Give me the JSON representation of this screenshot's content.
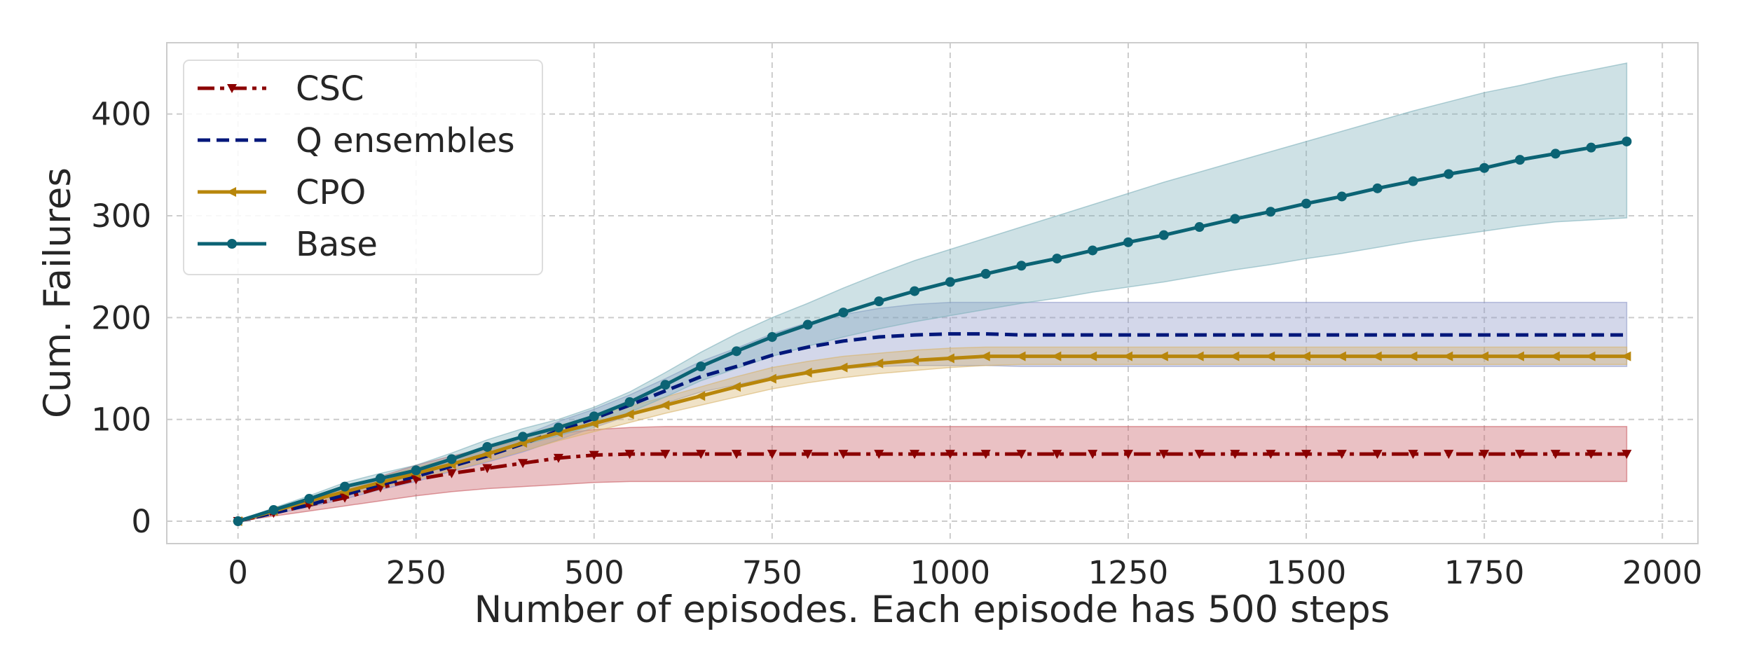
{
  "chart_data": {
    "type": "line",
    "title": "",
    "xlabel": "Number of episodes. Each episode has 500 steps",
    "ylabel": "Cum. Failures",
    "xlim": [
      -100,
      2050
    ],
    "ylim": [
      -22,
      470
    ],
    "xticks": [
      0,
      250,
      500,
      750,
      1000,
      1250,
      1500,
      1750,
      2000
    ],
    "yticks": [
      0,
      100,
      200,
      300,
      400
    ],
    "grid": true,
    "legend_position": "top-left",
    "x": [
      0,
      50,
      100,
      150,
      200,
      250,
      300,
      350,
      400,
      450,
      500,
      550,
      600,
      650,
      700,
      750,
      800,
      850,
      900,
      950,
      1000,
      1050,
      1100,
      1150,
      1200,
      1250,
      1300,
      1350,
      1400,
      1450,
      1500,
      1550,
      1600,
      1650,
      1700,
      1750,
      1800,
      1850,
      1900,
      1950
    ],
    "series": [
      {
        "name": "CSC",
        "color": "#8b0000",
        "band_color": "#c95c63",
        "line_style": "dashdot",
        "marker": "triangle-down",
        "values": [
          0,
          8,
          16,
          23,
          33,
          41,
          47,
          52,
          57,
          62,
          65,
          66,
          66,
          66,
          66,
          66,
          66,
          66,
          66,
          66,
          66,
          66,
          66,
          66,
          66,
          66,
          66,
          66,
          66,
          66,
          66,
          66,
          66,
          66,
          66,
          66,
          66,
          66,
          66,
          66
        ],
        "lower": [
          0,
          5,
          10,
          15,
          20,
          25,
          29,
          32,
          34,
          36,
          38,
          39,
          39,
          39,
          39,
          39,
          39,
          39,
          39,
          39,
          39,
          39,
          39,
          39,
          39,
          39,
          39,
          39,
          39,
          39,
          39,
          39,
          39,
          39,
          39,
          39,
          39,
          39,
          39,
          39
        ],
        "upper": [
          0,
          11,
          22,
          32,
          44,
          55,
          64,
          72,
          80,
          86,
          90,
          92,
          93,
          93,
          93,
          93,
          93,
          93,
          93,
          93,
          93,
          93,
          93,
          93,
          93,
          93,
          93,
          93,
          93,
          93,
          93,
          93,
          93,
          93,
          93,
          93,
          93,
          93,
          93,
          93
        ]
      },
      {
        "name": "Q ensembles",
        "color": "#00177a",
        "band_color": "#8c96c8",
        "line_style": "dashed",
        "marker": "none",
        "values": [
          0,
          8,
          16,
          26,
          36,
          44,
          54,
          64,
          76,
          89,
          101,
          114,
          128,
          142,
          152,
          163,
          171,
          177,
          181,
          183,
          184,
          184,
          183,
          183,
          183,
          183,
          183,
          183,
          183,
          183,
          183,
          183,
          183,
          183,
          183,
          183,
          183,
          183,
          183,
          183
        ],
        "lower": [
          0,
          7,
          14,
          22,
          31,
          39,
          49,
          58,
          68,
          80,
          92,
          104,
          116,
          127,
          134,
          142,
          147,
          150,
          152,
          153,
          153,
          153,
          152,
          152,
          152,
          152,
          152,
          152,
          152,
          152,
          152,
          152,
          152,
          152,
          152,
          152,
          152,
          152,
          152,
          152
        ],
        "upper": [
          0,
          10,
          19,
          30,
          41,
          50,
          60,
          71,
          84,
          98,
          110,
          124,
          140,
          157,
          170,
          184,
          195,
          203,
          209,
          213,
          215,
          215,
          215,
          215,
          215,
          215,
          215,
          215,
          215,
          215,
          215,
          215,
          215,
          215,
          215,
          215,
          215,
          215,
          215,
          215
        ]
      },
      {
        "name": "CPO",
        "color": "#b8860b",
        "band_color": "#d8b46a",
        "line_style": "solid",
        "marker": "triangle-left",
        "values": [
          0,
          10,
          20,
          29,
          38,
          47,
          56,
          66,
          77,
          87,
          96,
          105,
          114,
          123,
          132,
          140,
          146,
          151,
          155,
          158,
          160,
          162,
          162,
          162,
          162,
          162,
          162,
          162,
          162,
          162,
          162,
          162,
          162,
          162,
          162,
          162,
          162,
          162,
          162,
          162
        ],
        "lower": [
          0,
          8,
          17,
          25,
          33,
          41,
          50,
          59,
          69,
          79,
          88,
          97,
          106,
          114,
          122,
          130,
          136,
          141,
          145,
          148,
          151,
          153,
          154,
          154,
          154,
          154,
          154,
          154,
          154,
          154,
          154,
          154,
          154,
          154,
          154,
          154,
          154,
          154,
          154,
          154
        ],
        "upper": [
          0,
          12,
          23,
          33,
          43,
          53,
          62,
          72,
          84,
          94,
          103,
          113,
          122,
          132,
          142,
          151,
          157,
          162,
          165,
          168,
          170,
          171,
          171,
          171,
          171,
          171,
          171,
          171,
          171,
          171,
          171,
          171,
          171,
          171,
          171,
          171,
          171,
          171,
          171,
          171
        ]
      },
      {
        "name": "Base",
        "color": "#0b6374",
        "band_color": "#7fb0ba",
        "line_style": "solid",
        "marker": "circle",
        "values": [
          0,
          11,
          22,
          34,
          42,
          50,
          61,
          73,
          83,
          92,
          103,
          117,
          134,
          152,
          167,
          181,
          193,
          205,
          216,
          226,
          235,
          243,
          251,
          258,
          266,
          274,
          281,
          289,
          297,
          304,
          312,
          319,
          327,
          334,
          341,
          347,
          355,
          361,
          367,
          373
        ],
        "lower": [
          0,
          9,
          19,
          30,
          37,
          45,
          55,
          66,
          75,
          84,
          94,
          107,
          122,
          138,
          150,
          162,
          172,
          181,
          189,
          196,
          202,
          208,
          214,
          219,
          225,
          230,
          235,
          241,
          247,
          252,
          258,
          263,
          269,
          275,
          280,
          285,
          290,
          294,
          296,
          298
        ],
        "upper": [
          0,
          13,
          25,
          38,
          47,
          55,
          67,
          80,
          91,
          100,
          112,
          127,
          146,
          166,
          184,
          200,
          214,
          229,
          243,
          256,
          267,
          278,
          289,
          300,
          311,
          322,
          333,
          343,
          353,
          363,
          373,
          383,
          393,
          403,
          412,
          421,
          428,
          436,
          443,
          450
        ]
      }
    ]
  }
}
